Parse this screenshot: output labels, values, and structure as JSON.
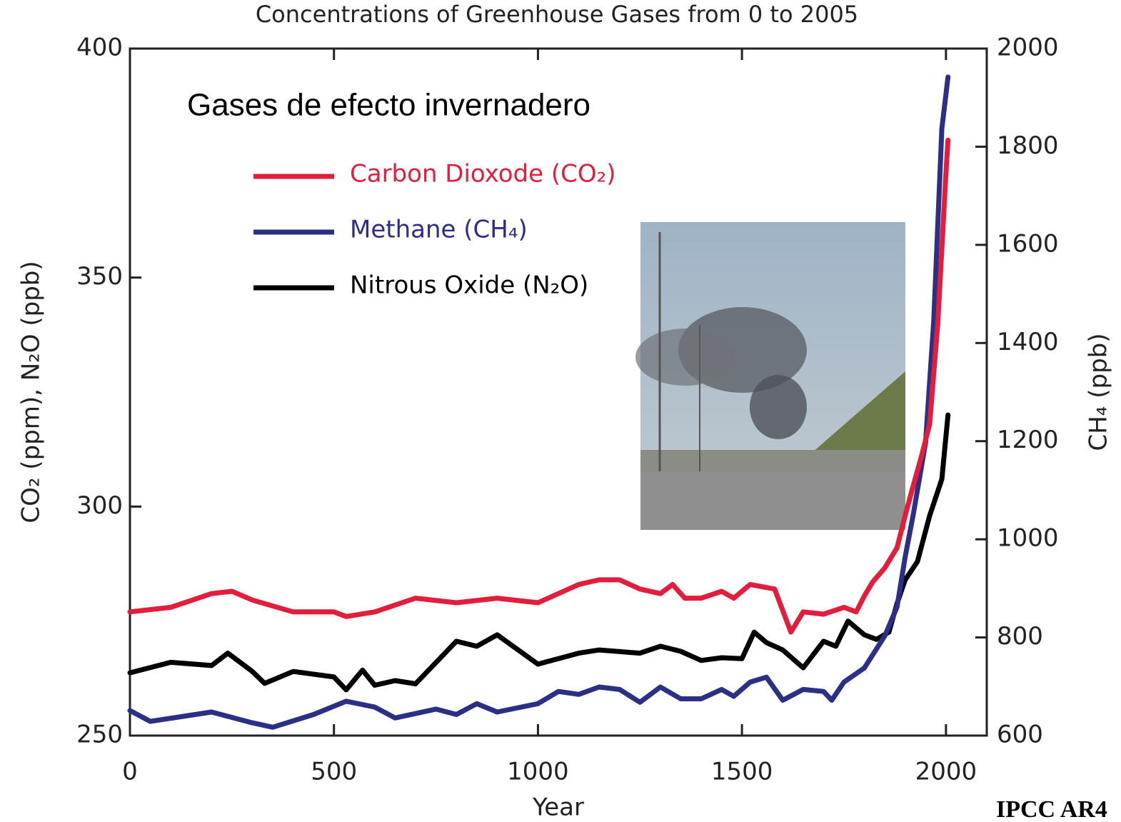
{
  "chart_data": {
    "type": "line",
    "title": "Concentrations of Greenhouse Gases from 0 to 2005",
    "annotation": "Gases de efecto invernadero",
    "source": "IPCC AR4",
    "xlabel": "Year",
    "ylabel": "CO₂ (ppm), N₂O (ppb)",
    "y2label": "CH₄ (ppb)",
    "xlim": [
      0,
      2100
    ],
    "xticks": [
      0,
      500,
      1000,
      1500,
      2000
    ],
    "ylim": [
      250,
      400
    ],
    "yticks": [
      250,
      300,
      350,
      400
    ],
    "y2lim": [
      600,
      2000
    ],
    "y2ticks": [
      600,
      800,
      1000,
      1200,
      1400,
      1600,
      1800,
      2000
    ],
    "series": [
      {
        "name": "Carbon Dioxode (CO₂)",
        "color": "#e21e3c",
        "x": [
          0,
          100,
          200,
          250,
          300,
          400,
          500,
          530,
          600,
          700,
          800,
          900,
          1000,
          1050,
          1100,
          1150,
          1200,
          1250,
          1300,
          1330,
          1360,
          1400,
          1450,
          1480,
          1520,
          1580,
          1620,
          1650,
          1700,
          1750,
          1780,
          1800,
          1820,
          1850,
          1880,
          1900,
          1920,
          1940,
          1960,
          1980,
          2000,
          2005
        ],
        "values": [
          277,
          278,
          281,
          281.5,
          279.6,
          277,
          277,
          276,
          277,
          280,
          279,
          280,
          279,
          281,
          283,
          284,
          284,
          282,
          281,
          283,
          280,
          280,
          281.5,
          280,
          283,
          282,
          272.6,
          277,
          276.5,
          278,
          277,
          280.5,
          283.5,
          286.6,
          291,
          298,
          304.6,
          311,
          318,
          340,
          373,
          380
        ]
      },
      {
        "name": "Methane (CH₄)",
        "color": "#2b2f86",
        "axis": "y2",
        "x": [
          0,
          50,
          200,
          300,
          350,
          450,
          530,
          600,
          650,
          750,
          800,
          850,
          900,
          1000,
          1050,
          1100,
          1150,
          1200,
          1250,
          1300,
          1350,
          1400,
          1450,
          1480,
          1520,
          1560,
          1600,
          1650,
          1700,
          1720,
          1750,
          1800,
          1850,
          1880,
          1900,
          1920,
          1950,
          1970,
          1990,
          2005
        ],
        "values": [
          651,
          629,
          648,
          626,
          617,
          643,
          670,
          658,
          636,
          654,
          643,
          665,
          648,
          665,
          690,
          684,
          699,
          694,
          668,
          699,
          675,
          675,
          694,
          680,
          709,
          719,
          672,
          694,
          690,
          672,
          709,
          738,
          803,
          862,
          964,
          1051,
          1197,
          1444,
          1837,
          1942
        ]
      },
      {
        "name": "Nitrous Oxide (N₂O)",
        "color": "#000000",
        "x": [
          0,
          100,
          200,
          240,
          300,
          330,
          400,
          500,
          530,
          570,
          600,
          650,
          700,
          800,
          850,
          900,
          1000,
          1100,
          1150,
          1250,
          1300,
          1350,
          1400,
          1450,
          1500,
          1530,
          1560,
          1600,
          1650,
          1700,
          1730,
          1760,
          1800,
          1830,
          1860,
          1880,
          1900,
          1930,
          1960,
          1990,
          2005
        ],
        "values": [
          263.7,
          266,
          265.3,
          268,
          264,
          261.4,
          264,
          262.8,
          260,
          264.3,
          261,
          262,
          261.3,
          270.6,
          269.5,
          272,
          265.6,
          268,
          268.7,
          268,
          269.5,
          268.4,
          266.4,
          267,
          266.8,
          272.6,
          270.3,
          268.7,
          264.8,
          270.6,
          269.5,
          275,
          272,
          271,
          272.6,
          278.8,
          284,
          288,
          298,
          306,
          320
        ]
      }
    ]
  }
}
